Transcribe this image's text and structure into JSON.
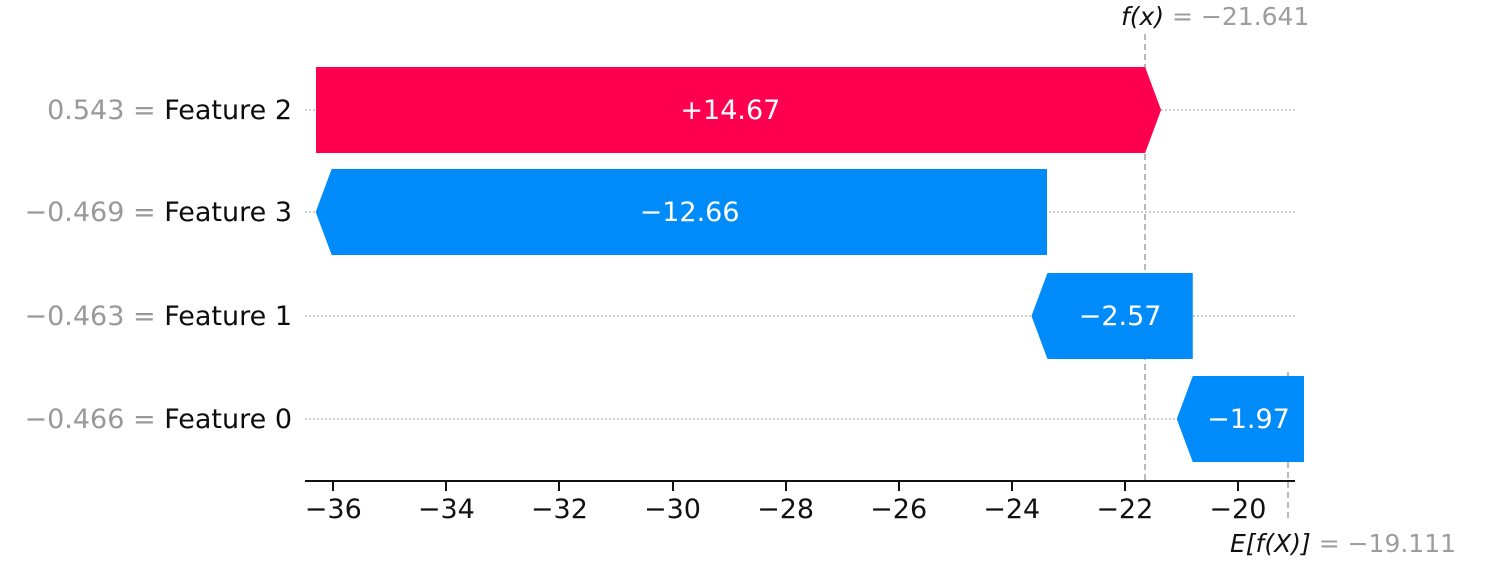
{
  "figure": {
    "background": "#ffffff",
    "fx_annotation": {
      "math": "f(x)",
      "eq": " = −21.641"
    },
    "base_annotation": {
      "math": "E[f(X)]",
      "eq": " = −19.111"
    },
    "colors": {
      "positive": "#ff0051",
      "negative": "#008bfb",
      "gray_text": "#999999",
      "bar_label_text": "#ffffff",
      "grid_dotted": "#cdcdcd",
      "dashed_line": "#b9b9b9",
      "axis": "#111111"
    }
  },
  "chart_data": {
    "type": "bar",
    "subtype": "waterfall-shap",
    "orientation": "horizontal",
    "title": "",
    "xlabel": "",
    "ylabel": "",
    "grid": "dotted horizontal guide per row",
    "legend": "none",
    "fx_value": -21.641,
    "base_value": -19.111,
    "x_axis": {
      "lim": [
        -36.5,
        -18.99
      ],
      "ticks": [
        -36,
        -34,
        -32,
        -30,
        -28,
        -26,
        -24,
        -22,
        -20
      ],
      "tick_labels": [
        "−36",
        "−34",
        "−32",
        "−30",
        "−28",
        "−26",
        "−24",
        "−22",
        "−20"
      ]
    },
    "rows": [
      {
        "name": "Feature 2",
        "data_value": "0.543",
        "contribution": 14.67,
        "bar_label": "+14.67",
        "start": -36.311,
        "end": -21.641,
        "color": "positive",
        "arrow": "right"
      },
      {
        "name": "Feature 3",
        "data_value": "−0.469",
        "contribution": -12.66,
        "bar_label": "−12.66",
        "start": -23.651,
        "end": -36.311,
        "color": "negative",
        "arrow": "left"
      },
      {
        "name": "Feature 1",
        "data_value": "−0.463",
        "contribution": -2.57,
        "bar_label": "−2.57",
        "start": -21.081,
        "end": -23.651,
        "color": "negative",
        "arrow": "left"
      },
      {
        "name": "Feature 0",
        "data_value": "−0.466",
        "contribution": -1.97,
        "bar_label": "−1.97",
        "start": -19.111,
        "end": -21.081,
        "color": "negative",
        "arrow": "left"
      }
    ],
    "row_label_separator": " = "
  }
}
